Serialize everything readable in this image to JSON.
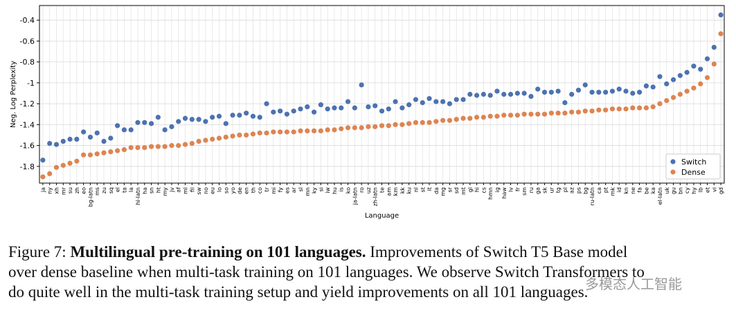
{
  "chart_data": {
    "type": "scatter",
    "x_label": "Language",
    "y_label": "Neg. Log Perplexity",
    "categories": [
      "ja",
      "ny",
      "xh",
      "mr",
      "su",
      "zh",
      "eo",
      "bg-latn",
      "ms",
      "zu",
      "sq",
      "el",
      "ta",
      "la",
      "hi-latn",
      "ha",
      "sn",
      "ht",
      "my",
      "jv",
      "af",
      "ml",
      "fil",
      "sw",
      "no",
      "eu",
      "lo",
      "so",
      "yo",
      "de",
      "en",
      "th",
      "co",
      "tr",
      "mi",
      "fy",
      "es",
      "ar",
      "sl",
      "mn",
      "ky",
      "si",
      "iw",
      "hu",
      "is",
      "ko",
      "ja-latn",
      "ro",
      "uz",
      "zh-latn",
      "te",
      "am",
      "km",
      "kk",
      "ku",
      "nl",
      "st",
      "it",
      "da",
      "mg",
      "sr",
      "sd",
      "mt",
      "gl",
      "hi",
      "cs",
      "hmn",
      "ig",
      "haw",
      "lv",
      "fr",
      "sm",
      "ru",
      "ga",
      "sk",
      "ur",
      "tg",
      "pl",
      "az",
      "ps",
      "bg",
      "ru-latn",
      "ca",
      "pt",
      "mk",
      "id",
      "kn",
      "ne",
      "fa",
      "be",
      "ka",
      "el-latn",
      "uk",
      "gu",
      "bn",
      "cy",
      "hy",
      "lb",
      "et",
      "vi",
      "gd"
    ],
    "series": [
      {
        "name": "Switch",
        "color": "#4c72b0",
        "values": [
          -1.74,
          -1.58,
          -1.59,
          -1.56,
          -1.54,
          -1.54,
          -1.47,
          -1.52,
          -1.48,
          -1.56,
          -1.53,
          -1.41,
          -1.45,
          -1.45,
          -1.38,
          -1.38,
          -1.39,
          -1.33,
          -1.45,
          -1.42,
          -1.37,
          -1.34,
          -1.35,
          -1.35,
          -1.37,
          -1.33,
          -1.32,
          -1.39,
          -1.31,
          -1.31,
          -1.29,
          -1.32,
          -1.33,
          -1.2,
          -1.28,
          -1.27,
          -1.3,
          -1.27,
          -1.25,
          -1.23,
          -1.28,
          -1.21,
          -1.25,
          -1.24,
          -1.24,
          -1.18,
          -1.24,
          -1.02,
          -1.23,
          -1.22,
          -1.27,
          -1.25,
          -1.18,
          -1.24,
          -1.21,
          -1.16,
          -1.19,
          -1.15,
          -1.18,
          -1.18,
          -1.2,
          -1.16,
          -1.16,
          -1.11,
          -1.12,
          -1.11,
          -1.12,
          -1.08,
          -1.11,
          -1.11,
          -1.1,
          -1.1,
          -1.13,
          -1.06,
          -1.09,
          -1.09,
          -1.08,
          -1.19,
          -1.11,
          -1.07,
          -1.02,
          -1.09,
          -1.09,
          -1.09,
          -1.08,
          -1.06,
          -1.08,
          -1.1,
          -1.09,
          -1.03,
          -1.04,
          -0.94,
          -1.01,
          -0.97,
          -0.93,
          -0.9,
          -0.84,
          -0.87,
          -0.77,
          -0.66,
          -0.35
        ]
      },
      {
        "name": "Dense",
        "color": "#dd8452",
        "values": [
          -1.9,
          -1.87,
          -1.81,
          -1.79,
          -1.77,
          -1.75,
          -1.69,
          -1.69,
          -1.68,
          -1.67,
          -1.66,
          -1.65,
          -1.64,
          -1.62,
          -1.62,
          -1.62,
          -1.61,
          -1.61,
          -1.61,
          -1.6,
          -1.6,
          -1.59,
          -1.58,
          -1.56,
          -1.55,
          -1.54,
          -1.53,
          -1.52,
          -1.51,
          -1.5,
          -1.5,
          -1.49,
          -1.48,
          -1.48,
          -1.47,
          -1.47,
          -1.47,
          -1.47,
          -1.46,
          -1.46,
          -1.46,
          -1.46,
          -1.45,
          -1.45,
          -1.44,
          -1.43,
          -1.43,
          -1.43,
          -1.42,
          -1.42,
          -1.41,
          -1.41,
          -1.4,
          -1.4,
          -1.39,
          -1.38,
          -1.38,
          -1.38,
          -1.37,
          -1.36,
          -1.36,
          -1.35,
          -1.34,
          -1.34,
          -1.33,
          -1.33,
          -1.32,
          -1.32,
          -1.31,
          -1.31,
          -1.31,
          -1.3,
          -1.3,
          -1.3,
          -1.3,
          -1.29,
          -1.29,
          -1.29,
          -1.28,
          -1.28,
          -1.27,
          -1.27,
          -1.26,
          -1.26,
          -1.25,
          -1.25,
          -1.25,
          -1.24,
          -1.24,
          -1.24,
          -1.23,
          -1.2,
          -1.17,
          -1.14,
          -1.11,
          -1.08,
          -1.05,
          -1.01,
          -0.95,
          -0.82,
          -0.53
        ]
      }
    ],
    "ylim": [
      -1.96,
      -0.26
    ],
    "yticks": [
      -1.8,
      -1.6,
      -1.4,
      -1.2,
      -1.0,
      -0.8,
      -0.6,
      -0.4
    ],
    "grid": true,
    "legend": "lower right"
  },
  "caption": {
    "label": "Figure 7:",
    "title": "Multilingual pre-training on 101 languages.",
    "lines": [
      "Improvements of Switch T5 Base model",
      "over dense baseline when multi-task training on 101 languages. We observe Switch Transformers to",
      "do quite well in the multi-task training setup and yield improvements on all 101 languages."
    ]
  },
  "watermark": "多模态人工智能"
}
